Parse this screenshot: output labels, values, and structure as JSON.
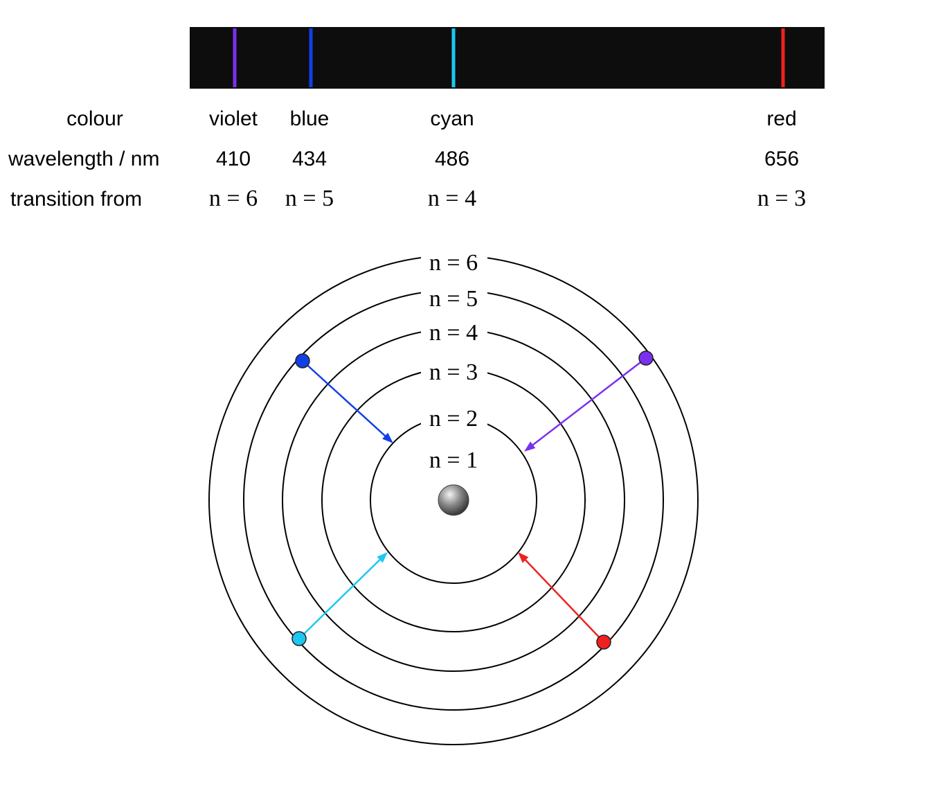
{
  "spectrum": {
    "row_labels": {
      "colour": "colour",
      "wavelength": "wavelength / nm",
      "transition": "transition from"
    },
    "lines": [
      {
        "colour": "violet",
        "wavelength": 410,
        "transition": "n = 6",
        "color": "#7b2ff0"
      },
      {
        "colour": "blue",
        "wavelength": 434,
        "transition": "n = 5",
        "color": "#1040e8"
      },
      {
        "colour": "cyan",
        "wavelength": 486,
        "transition": "n = 4",
        "color": "#1cc8f0"
      },
      {
        "colour": "red",
        "wavelength": 656,
        "transition": "n = 3",
        "color": "#f02020"
      }
    ]
  },
  "orbits": {
    "labels": [
      "n = 1",
      "n = 2",
      "n = 3",
      "n = 4",
      "n = 5",
      "n = 6"
    ]
  }
}
